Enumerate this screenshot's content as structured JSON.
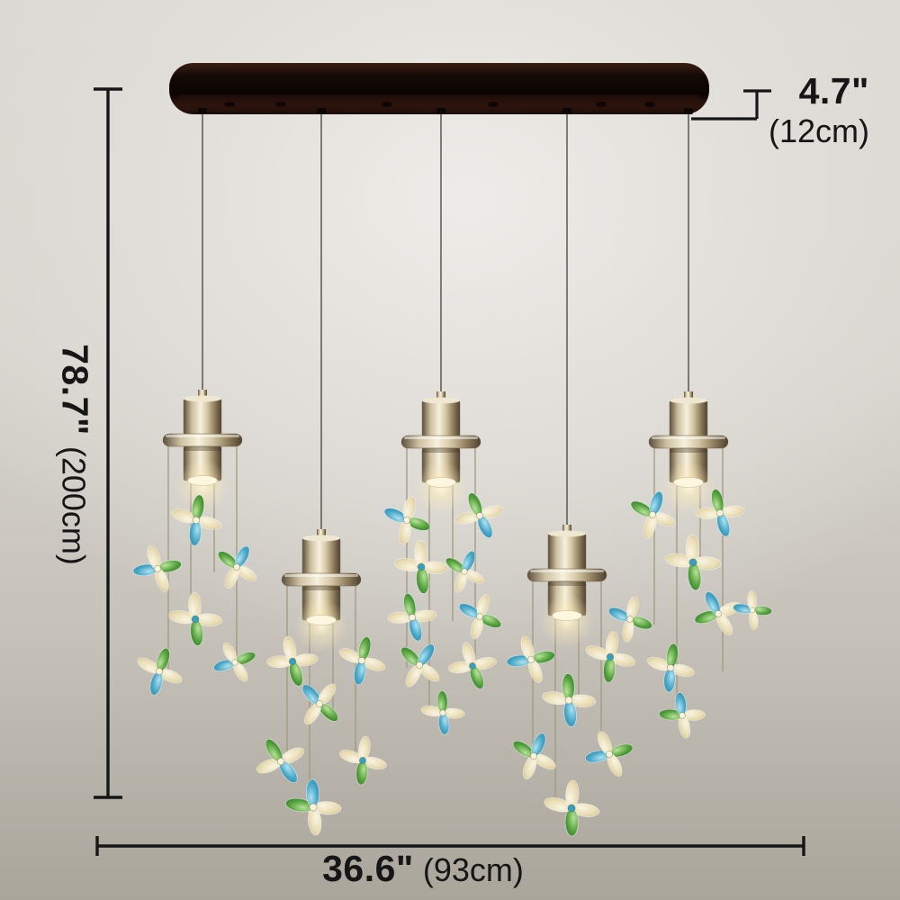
{
  "annotations": {
    "canopy_depth": {
      "inches": "4.7\"",
      "metric": "(12cm)"
    },
    "fixture_height": {
      "inches": "78.7\"",
      "metric": "(200cm)"
    },
    "fixture_width": {
      "inches": "36.6\"",
      "metric": "(93cm)"
    }
  },
  "product": {
    "pendant_count": 5,
    "colors": {
      "canopy_dark_wood": "#150a07",
      "metal_champagne_light": "#f7f1dd",
      "metal_champagne_mid": "#cdbfa0",
      "metal_champagne_dark": "#5c4f3b",
      "crystal_champagne": "#e9ddb4",
      "crystal_green": "#3c8c34",
      "crystal_teal": "#3ba6c6",
      "lamp_glow": "#fff7dd",
      "suspension_wire": "#45413c",
      "annotation_text": "#161616",
      "background_top": "#eceae6",
      "background_bottom": "#aaa59b"
    }
  }
}
